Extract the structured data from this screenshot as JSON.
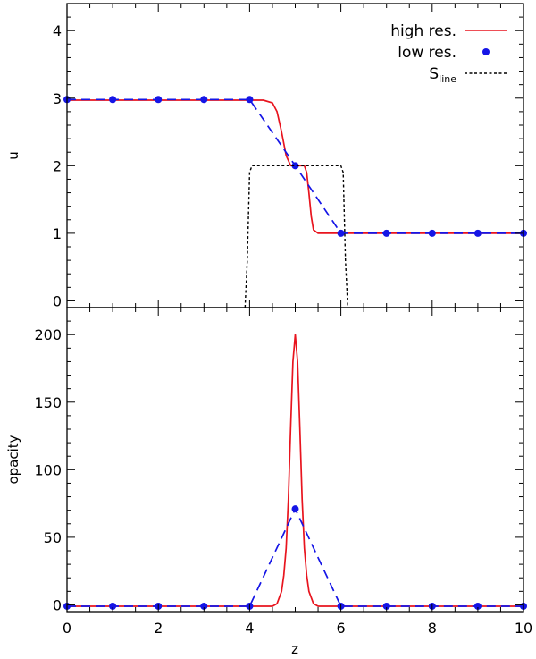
{
  "colors": {
    "high_res": "#e8141e",
    "low_res": "#1515e6",
    "s_line": "#000000",
    "axes": "#000000"
  },
  "chart_data": [
    {
      "type": "line",
      "ylabel": "u",
      "xlim": [
        0,
        10
      ],
      "ylim": [
        -0.1,
        4.4
      ],
      "x_ticks": [
        "0",
        "2",
        "4",
        "6",
        "8",
        "10"
      ],
      "y_ticks": [
        "0",
        "1",
        "2",
        "3",
        "4"
      ],
      "legend_position": "top-right",
      "legend": [
        "high res.",
        "low res.",
        "S",
        "line"
      ],
      "series": [
        {
          "name": "high res.",
          "style": "solid-line",
          "x": [
            0,
            4.3,
            4.5,
            4.6,
            4.7,
            4.8,
            4.9,
            5.1,
            5.2,
            5.25,
            5.3,
            5.35,
            5.4,
            5.5,
            10
          ],
          "y": [
            2.97,
            2.97,
            2.93,
            2.8,
            2.5,
            2.15,
            2.0,
            2.0,
            2.0,
            1.9,
            1.6,
            1.25,
            1.05,
            1.0,
            1.0
          ]
        },
        {
          "name": "low res.",
          "style": "dashed-line-markers",
          "x": [
            0,
            1,
            2,
            3,
            4,
            5,
            6,
            7,
            8,
            9,
            10
          ],
          "y": [
            2.98,
            2.98,
            2.98,
            2.98,
            2.98,
            2.0,
            1.0,
            1.0,
            1.0,
            1.0,
            1.0
          ]
        },
        {
          "name": "S line",
          "style": "dotted-line",
          "x": [
            3.9,
            3.95,
            4.0,
            4.05,
            4.1,
            6.0,
            6.05,
            6.1,
            6.15
          ],
          "y": [
            -0.1,
            0.6,
            1.9,
            2.0,
            2.0,
            2.0,
            1.9,
            0.6,
            -0.1
          ]
        }
      ]
    },
    {
      "type": "line",
      "xlabel": "z",
      "ylabel": "opacity",
      "xlim": [
        0,
        10
      ],
      "ylim": [
        -5,
        220
      ],
      "x_ticks": [
        "0",
        "2",
        "4",
        "6",
        "8",
        "10"
      ],
      "y_ticks": [
        "0",
        "50",
        "100",
        "150",
        "200"
      ],
      "series": [
        {
          "name": "high res.",
          "style": "solid-line",
          "x": [
            0,
            4.5,
            4.6,
            4.7,
            4.75,
            4.8,
            4.85,
            4.9,
            4.95,
            5.0,
            5.05,
            5.1,
            5.15,
            5.2,
            5.25,
            5.3,
            5.4,
            5.5,
            10
          ],
          "y": [
            -1,
            -1,
            0.9,
            10,
            22,
            42,
            78,
            132,
            180,
            200,
            180,
            132,
            78,
            42,
            22,
            10,
            0.9,
            -1,
            -1
          ]
        },
        {
          "name": "low res.",
          "style": "dashed-line-markers",
          "x": [
            0,
            1,
            2,
            3,
            4,
            5,
            6,
            7,
            8,
            9,
            10
          ],
          "y": [
            -1,
            -1,
            -1,
            -1,
            -1,
            71,
            -1,
            -1,
            -1,
            -1,
            -1
          ]
        }
      ]
    }
  ]
}
